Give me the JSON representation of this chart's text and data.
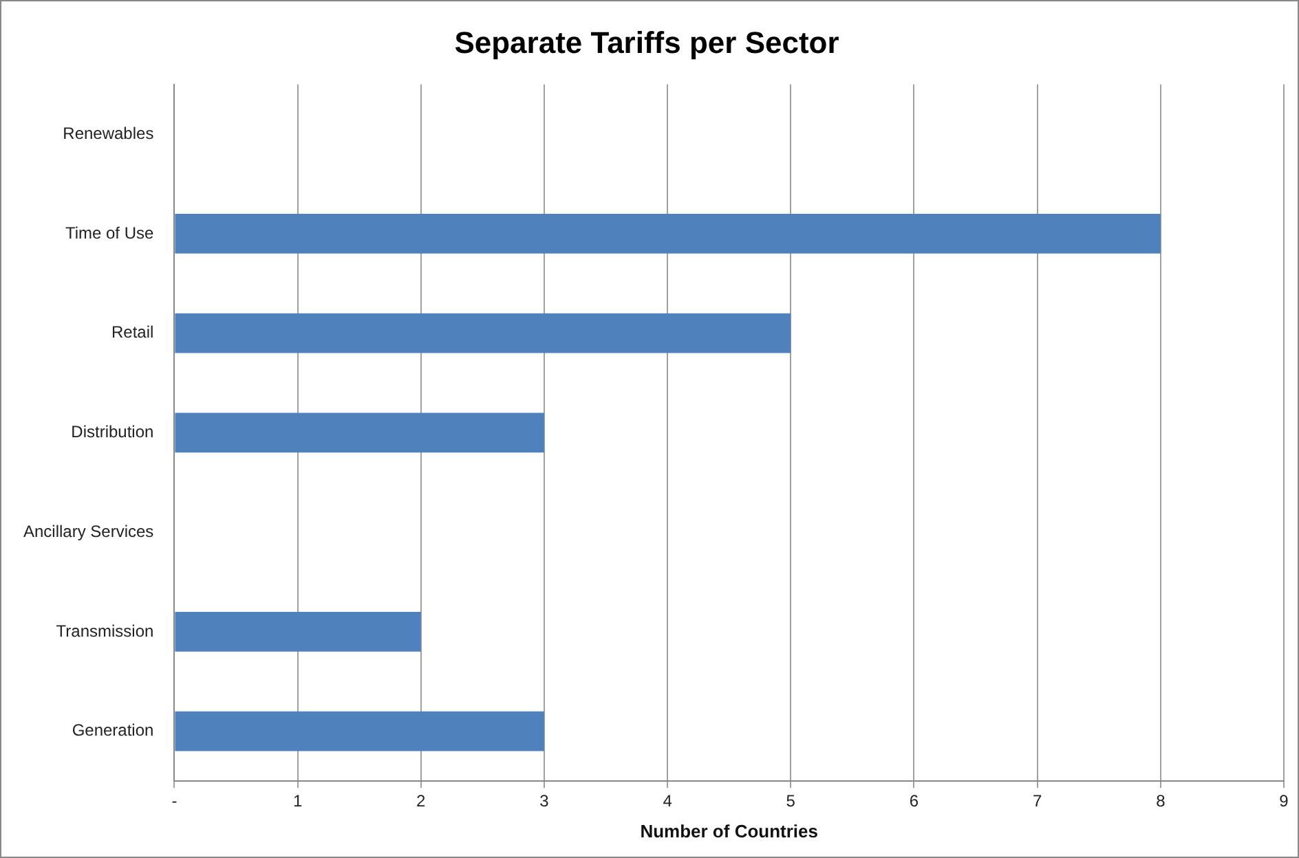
{
  "chart_data": {
    "type": "bar",
    "orientation": "horizontal",
    "title": "Separate Tariffs per Sector",
    "xlabel": "Number of Countries",
    "categories": [
      "Renewables",
      "Time of Use",
      "Retail",
      "Distribution",
      "Ancillary Services",
      "Transmission",
      "Generation"
    ],
    "values": [
      0,
      8,
      5,
      3,
      0,
      2,
      3
    ],
    "color": "#4f81bd",
    "xlim": [
      0,
      9
    ],
    "xticks": [
      {
        "value": 0,
        "label": "-"
      },
      1,
      2,
      3,
      4,
      5,
      6,
      7,
      8,
      9
    ],
    "grid": "x",
    "legend": false
  }
}
